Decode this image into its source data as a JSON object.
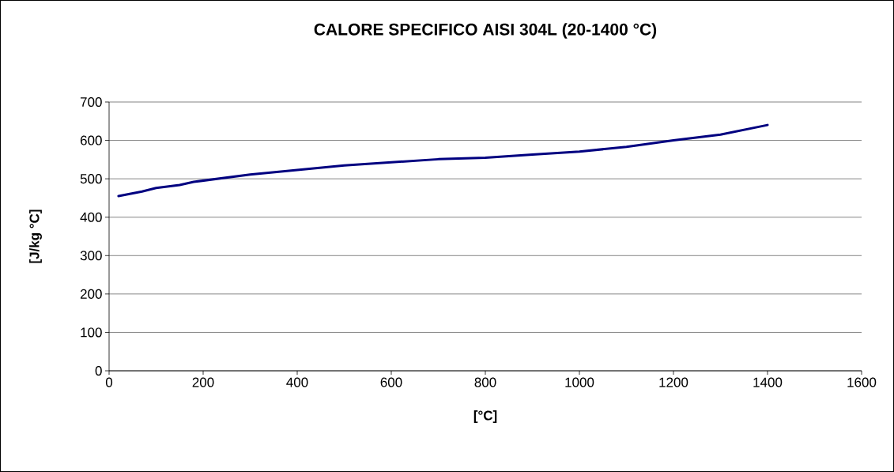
{
  "chart_data": {
    "type": "line",
    "title": "CALORE SPECIFICO AISI 304L (20-1400 °C)",
    "xlabel": "[°C]",
    "ylabel": "[J/kg °C]",
    "x": [
      20,
      70,
      100,
      150,
      180,
      300,
      400,
      500,
      600,
      700,
      800,
      900,
      1000,
      1100,
      1200,
      1300,
      1400
    ],
    "series": [
      {
        "color": "#000080",
        "values": [
          455,
          467,
          476,
          484,
          492,
          511,
          523,
          535,
          543,
          551,
          555,
          563,
          571,
          583,
          600,
          615,
          640
        ]
      }
    ],
    "xlim": [
      0,
      1600
    ],
    "xticks": [
      0,
      200,
      400,
      600,
      800,
      1000,
      1200,
      1400,
      1600
    ],
    "ylim": [
      0,
      700
    ],
    "yticks": [
      0,
      100,
      200,
      300,
      400,
      500,
      600,
      700
    ],
    "grid": "y",
    "marker": "none",
    "line_style": "solid"
  }
}
